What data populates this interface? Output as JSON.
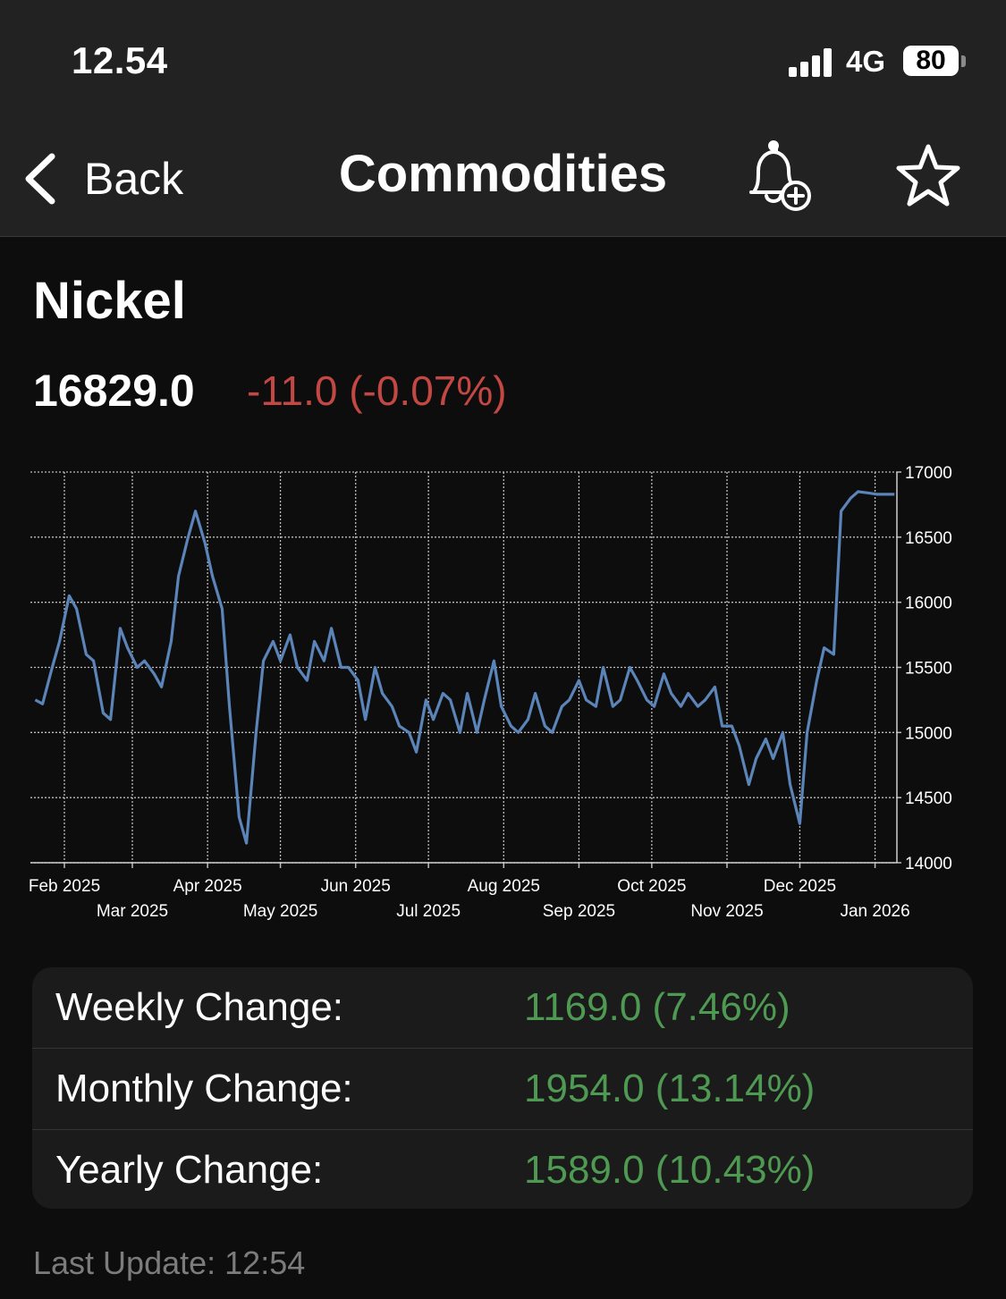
{
  "status_bar": {
    "time": "12.54",
    "network": "4G",
    "battery": "80"
  },
  "nav": {
    "back_label": "Back",
    "title": "Commodities"
  },
  "asset": {
    "name": "Nickel",
    "price": "16829.0",
    "change": "-11.0 (-0.07%)",
    "change_color": "#c34742"
  },
  "chart_data": {
    "type": "line",
    "series": [
      {
        "line_color": "#5b84b8",
        "x": [
          "2025-01-20",
          "2025-01-23",
          "2025-01-27",
          "2025-01-30",
          "2025-02-03",
          "2025-02-06",
          "2025-02-10",
          "2025-02-13",
          "2025-02-17",
          "2025-02-20",
          "2025-02-24",
          "2025-02-27",
          "2025-03-03",
          "2025-03-06",
          "2025-03-10",
          "2025-03-13",
          "2025-03-17",
          "2025-03-20",
          "2025-03-24",
          "2025-03-27",
          "2025-03-31",
          "2025-04-03",
          "2025-04-07",
          "2025-04-10",
          "2025-04-14",
          "2025-04-17",
          "2025-04-21",
          "2025-04-24",
          "2025-04-28",
          "2025-05-01",
          "2025-05-05",
          "2025-05-08",
          "2025-05-12",
          "2025-05-15",
          "2025-05-19",
          "2025-05-22",
          "2025-05-26",
          "2025-05-29",
          "2025-06-02",
          "2025-06-05",
          "2025-06-09",
          "2025-06-12",
          "2025-06-16",
          "2025-06-19",
          "2025-06-23",
          "2025-06-26",
          "2025-06-30",
          "2025-07-03",
          "2025-07-07",
          "2025-07-10",
          "2025-07-14",
          "2025-07-17",
          "2025-07-21",
          "2025-07-24",
          "2025-07-28",
          "2025-07-31",
          "2025-08-04",
          "2025-08-07",
          "2025-08-11",
          "2025-08-14",
          "2025-08-18",
          "2025-08-21",
          "2025-08-25",
          "2025-08-28",
          "2025-09-01",
          "2025-09-04",
          "2025-09-08",
          "2025-09-11",
          "2025-09-15",
          "2025-09-18",
          "2025-09-22",
          "2025-09-25",
          "2025-09-29",
          "2025-10-02",
          "2025-10-06",
          "2025-10-09",
          "2025-10-13",
          "2025-10-16",
          "2025-10-20",
          "2025-10-23",
          "2025-10-27",
          "2025-10-30",
          "2025-11-03",
          "2025-11-06",
          "2025-11-10",
          "2025-11-13",
          "2025-11-17",
          "2025-11-20",
          "2025-11-24",
          "2025-11-27",
          "2025-12-01",
          "2025-12-04",
          "2025-12-08",
          "2025-12-11",
          "2025-12-15",
          "2025-12-18",
          "2025-12-22",
          "2025-12-25",
          "2025-12-29",
          "2026-01-02",
          "2026-01-05",
          "2026-01-08",
          "2026-01-09"
        ],
        "y": [
          15250,
          15220,
          15500,
          15700,
          16050,
          15950,
          15600,
          15550,
          15150,
          15100,
          15800,
          15650,
          15500,
          15550,
          15450,
          15350,
          15700,
          16200,
          16500,
          16700,
          16450,
          16200,
          15950,
          15200,
          14350,
          14150,
          15000,
          15550,
          15700,
          15550,
          15750,
          15500,
          15400,
          15700,
          15550,
          15800,
          15500,
          15500,
          15400,
          15100,
          15500,
          15300,
          15200,
          15050,
          15000,
          14850,
          15250,
          15100,
          15300,
          15250,
          15000,
          15300,
          15000,
          15250,
          15550,
          15200,
          15050,
          15000,
          15100,
          15300,
          15050,
          15000,
          15200,
          15250,
          15400,
          15250,
          15200,
          15500,
          15200,
          15250,
          15500,
          15400,
          15250,
          15200,
          15450,
          15300,
          15200,
          15300,
          15200,
          15250,
          15350,
          15050,
          15050,
          14900,
          14600,
          14800,
          14950,
          14800,
          15000,
          14600,
          14300,
          15000,
          15400,
          15650,
          15600,
          16700,
          16800,
          16850,
          16840,
          16829,
          16829,
          16829,
          16829
        ]
      }
    ],
    "x_tick_labels_upper": [
      "Feb 2025",
      "Apr 2025",
      "Jun 2025",
      "Aug 2025",
      "Oct 2025",
      "Dec 2025"
    ],
    "x_tick_labels_lower": [
      "Mar 2025",
      "May 2025",
      "Jul 2025",
      "Sep 2025",
      "Nov 2025",
      "Jan 2026"
    ],
    "x_tick_dates_upper": [
      "2025-02-01",
      "2025-04-01",
      "2025-06-01",
      "2025-08-01",
      "2025-10-01",
      "2025-12-01"
    ],
    "x_tick_dates_lower": [
      "2025-03-01",
      "2025-05-01",
      "2025-07-01",
      "2025-09-01",
      "2025-11-01",
      "2026-01-01"
    ],
    "y_tick_labels": [
      "17000",
      "16500",
      "16000",
      "15500",
      "15000",
      "14500",
      "14000"
    ],
    "y_ticks": [
      17000,
      16500,
      16000,
      15500,
      15000,
      14500,
      14000
    ],
    "ylim": [
      14000,
      17000
    ],
    "xlim": [
      "2025-01-18",
      "2026-01-10"
    ],
    "grid": true,
    "y_axis_side": "right"
  },
  "stats": [
    {
      "label": "Weekly Change:",
      "value": "1169.0 (7.46%)"
    },
    {
      "label": "Monthly Change:",
      "value": "1954.0 (13.14%)"
    },
    {
      "label": "Yearly Change:",
      "value": "1589.0 (10.43%)"
    }
  ],
  "stats_value_color": "#4f9a52",
  "footer": {
    "last_update_label": "Last Update:",
    "last_update_time": "12:54"
  }
}
